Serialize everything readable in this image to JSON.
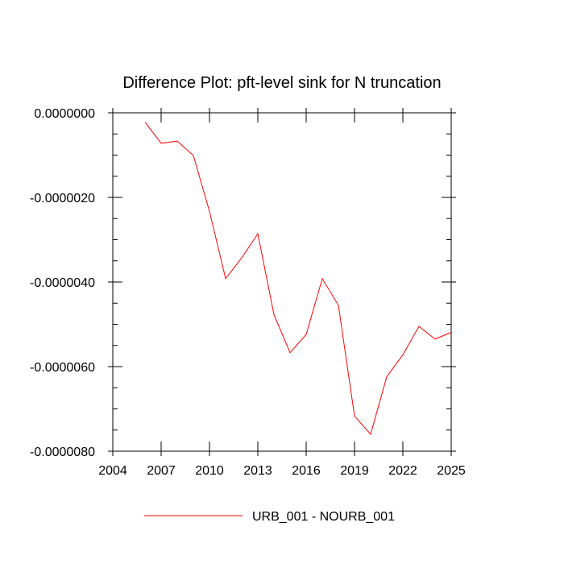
{
  "chart_data": {
    "type": "line",
    "title": "Difference Plot: pft-level sink for N truncation",
    "xlabel": "",
    "ylabel": "",
    "xlim": [
      2004,
      2025
    ],
    "ylim": [
      -8e-06,
      0.0
    ],
    "x_ticks": [
      2004,
      2007,
      2010,
      2013,
      2016,
      2019,
      2022,
      2025
    ],
    "x_tick_labels": [
      "2004",
      "2007",
      "2010",
      "2013",
      "2016",
      "2019",
      "2022",
      "2025"
    ],
    "y_ticks": [
      0.0,
      -2e-06,
      -4e-06,
      -6e-06,
      -8e-06
    ],
    "y_tick_labels": [
      "0.0000000",
      "-0.0000020",
      "-0.0000040",
      "-0.0000060",
      "-0.0000080"
    ],
    "grid": false,
    "legend_position": "bottom",
    "series": [
      {
        "name": "URB_001 - NOURB_001",
        "color": "#ff0000",
        "x": [
          2006,
          2007,
          2008,
          2009,
          2010,
          2011,
          2012,
          2013,
          2014,
          2015,
          2016,
          2017,
          2018,
          2019,
          2020,
          2021,
          2022,
          2023,
          2024,
          2025
        ],
        "y": [
          -2.2e-07,
          -7.2e-07,
          -6.7e-07,
          -1.01e-06,
          -2.33e-06,
          -3.92e-06,
          -3.43e-06,
          -2.86e-06,
          -4.77e-06,
          -5.67e-06,
          -5.24e-06,
          -3.92e-06,
          -4.55e-06,
          -7.17e-06,
          -7.6e-06,
          -6.24e-06,
          -5.72e-06,
          -5.05e-06,
          -5.35e-06,
          -5.19e-06
        ]
      }
    ]
  }
}
